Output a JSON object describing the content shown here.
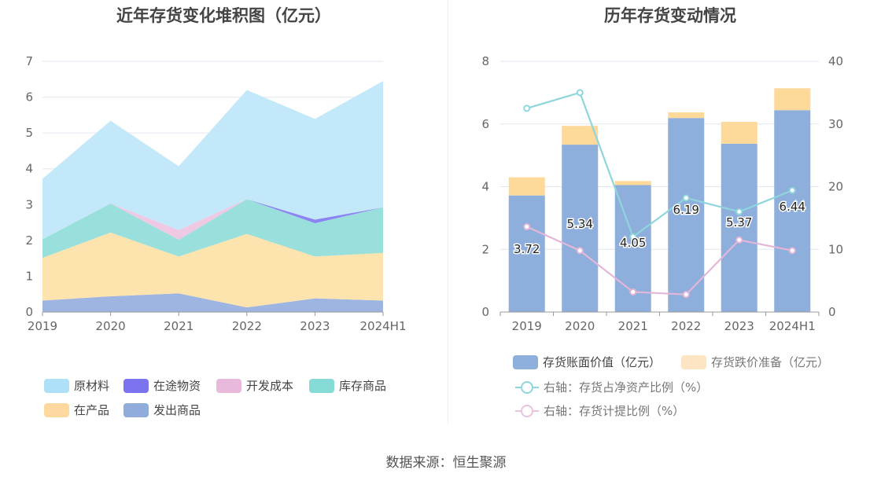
{
  "source": "数据来源：恒生聚源",
  "chart_data": [
    {
      "type": "area",
      "title": "近年存货变化堆积图（亿元）",
      "categories": [
        "2019",
        "2020",
        "2021",
        "2022",
        "2023",
        "2024H1"
      ],
      "ylim": [
        0,
        7
      ],
      "yticks": [
        "0",
        "1",
        "2",
        "3",
        "4",
        "5",
        "6",
        "7"
      ],
      "grid": true,
      "legend_position": "bottom",
      "series": [
        {
          "name": "发出商品",
          "color": "#9db5e0",
          "values": [
            0.32,
            0.44,
            0.52,
            0.13,
            0.38,
            0.32
          ]
        },
        {
          "name": "在产品",
          "color": "#fde3ae",
          "values": [
            1.19,
            1.78,
            1.03,
            2.05,
            1.17,
            1.33
          ]
        },
        {
          "name": "库存商品",
          "color": "#99e0dc",
          "values": [
            0.52,
            0.81,
            0.47,
            0.97,
            0.93,
            1.27
          ]
        },
        {
          "name": "开发成本",
          "color": "#efc9e3",
          "values": [
            0.0,
            0.0,
            0.27,
            0.0,
            0.0,
            0.0
          ]
        },
        {
          "name": "在途物资",
          "color": "#8b84f2",
          "values": [
            0.0,
            0.0,
            0.0,
            0.0,
            0.1,
            0.0
          ]
        },
        {
          "name": "原材料",
          "color": "#c3e8fa",
          "values": [
            1.69,
            2.31,
            1.78,
            3.05,
            2.81,
            3.53
          ]
        }
      ],
      "legend_rows": [
        [
          {
            "name": "原材料",
            "color": "#aee1f7"
          },
          {
            "name": "在途物资",
            "color": "#7b74ee"
          },
          {
            "name": "开发成本",
            "color": "#e8b9db"
          },
          {
            "name": "库存商品",
            "color": "#87dbd6"
          }
        ],
        [
          {
            "name": "在产品",
            "color": "#fdd9a0"
          },
          {
            "name": "发出商品",
            "color": "#8facda"
          }
        ]
      ]
    },
    {
      "type": "bar",
      "title": "历年存货变动情况",
      "categories": [
        "2019",
        "2020",
        "2021",
        "2022",
        "2023",
        "2024H1"
      ],
      "ylim": [
        0,
        8
      ],
      "yticks": [
        "0",
        "2",
        "4",
        "6",
        "8"
      ],
      "y2lim": [
        0,
        40
      ],
      "y2ticks": [
        "0",
        "10",
        "20",
        "30",
        "40"
      ],
      "grid": true,
      "legend_position": "bottom",
      "series": [
        {
          "name": "存货账面价值（亿元）",
          "color": "#8eaedb",
          "values": [
            3.72,
            5.34,
            4.05,
            6.19,
            5.37,
            6.44
          ],
          "labels": [
            "3.72",
            "5.34",
            "4.05",
            "6.19",
            "5.37",
            "6.44"
          ]
        },
        {
          "name": "存货跌价准备（亿元）",
          "color": "#fdd99a",
          "values": [
            0.58,
            0.6,
            0.13,
            0.18,
            0.7,
            0.7
          ]
        },
        {
          "name": "右轴：存货占净资产比例（%）",
          "color": "#8ed6dc",
          "axis": "right",
          "values": [
            32.5,
            35.0,
            12.0,
            18.2,
            16.0,
            19.4
          ]
        },
        {
          "name": "右轴：存货计提比例（%）",
          "color": "#e4b6d8",
          "axis": "right",
          "values": [
            13.6,
            9.8,
            3.2,
            2.8,
            11.5,
            9.8
          ]
        }
      ]
    }
  ]
}
